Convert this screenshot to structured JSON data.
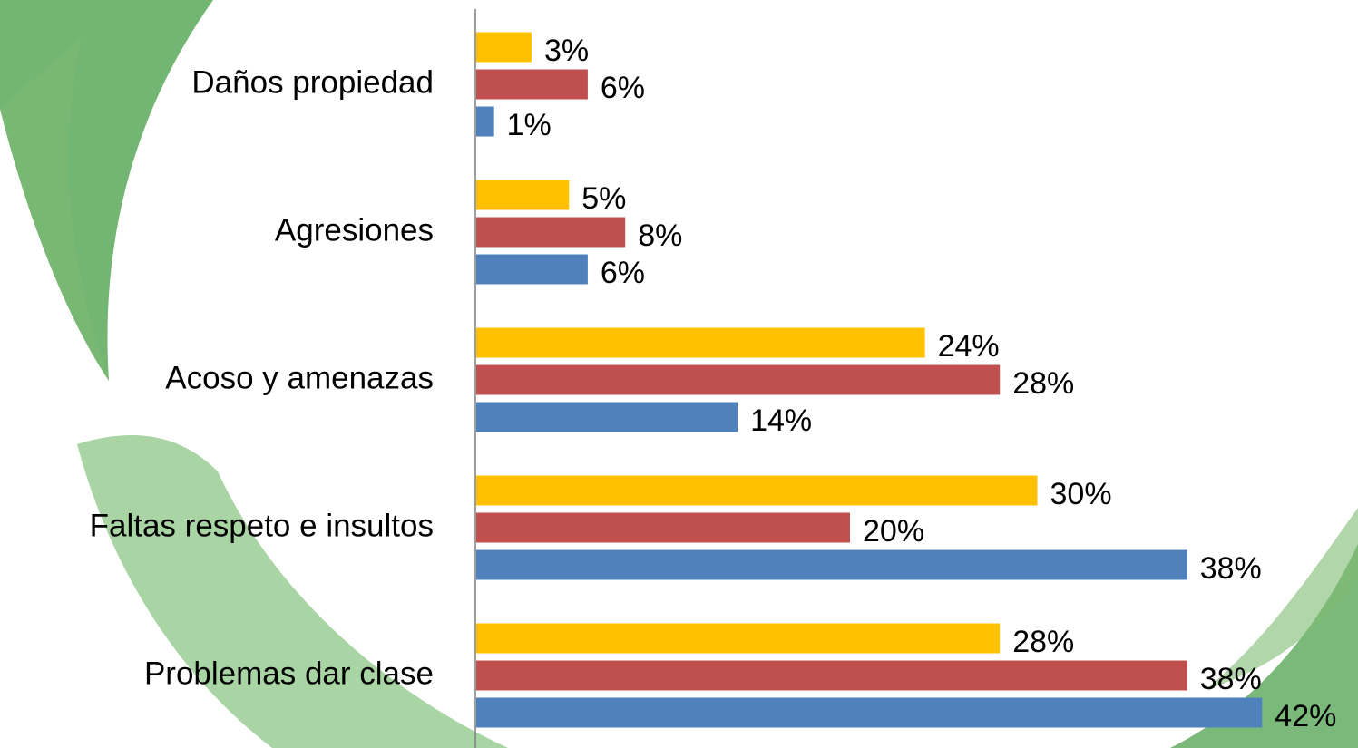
{
  "chart_data": {
    "type": "bar",
    "orientation": "horizontal",
    "categories": [
      "Daños propiedad",
      "Agresiones",
      "Acoso y amenazas",
      "Faltas respeto e insultos",
      "Problemas dar clase"
    ],
    "series": [
      {
        "color": "#FFC000",
        "values": [
          3,
          5,
          24,
          30,
          28
        ],
        "value_labels": [
          "3%",
          "5%",
          "24%",
          "30%",
          "28%"
        ]
      },
      {
        "color": "#C0504D",
        "values": [
          6,
          8,
          28,
          20,
          38
        ],
        "value_labels": [
          "6%",
          "8%",
          "28%",
          "20%",
          "38%"
        ]
      },
      {
        "color": "#4F81BD",
        "values": [
          1,
          6,
          14,
          38,
          42
        ],
        "value_labels": [
          "1%",
          "6%",
          "14%",
          "38%",
          "42%"
        ]
      }
    ]
  }
}
